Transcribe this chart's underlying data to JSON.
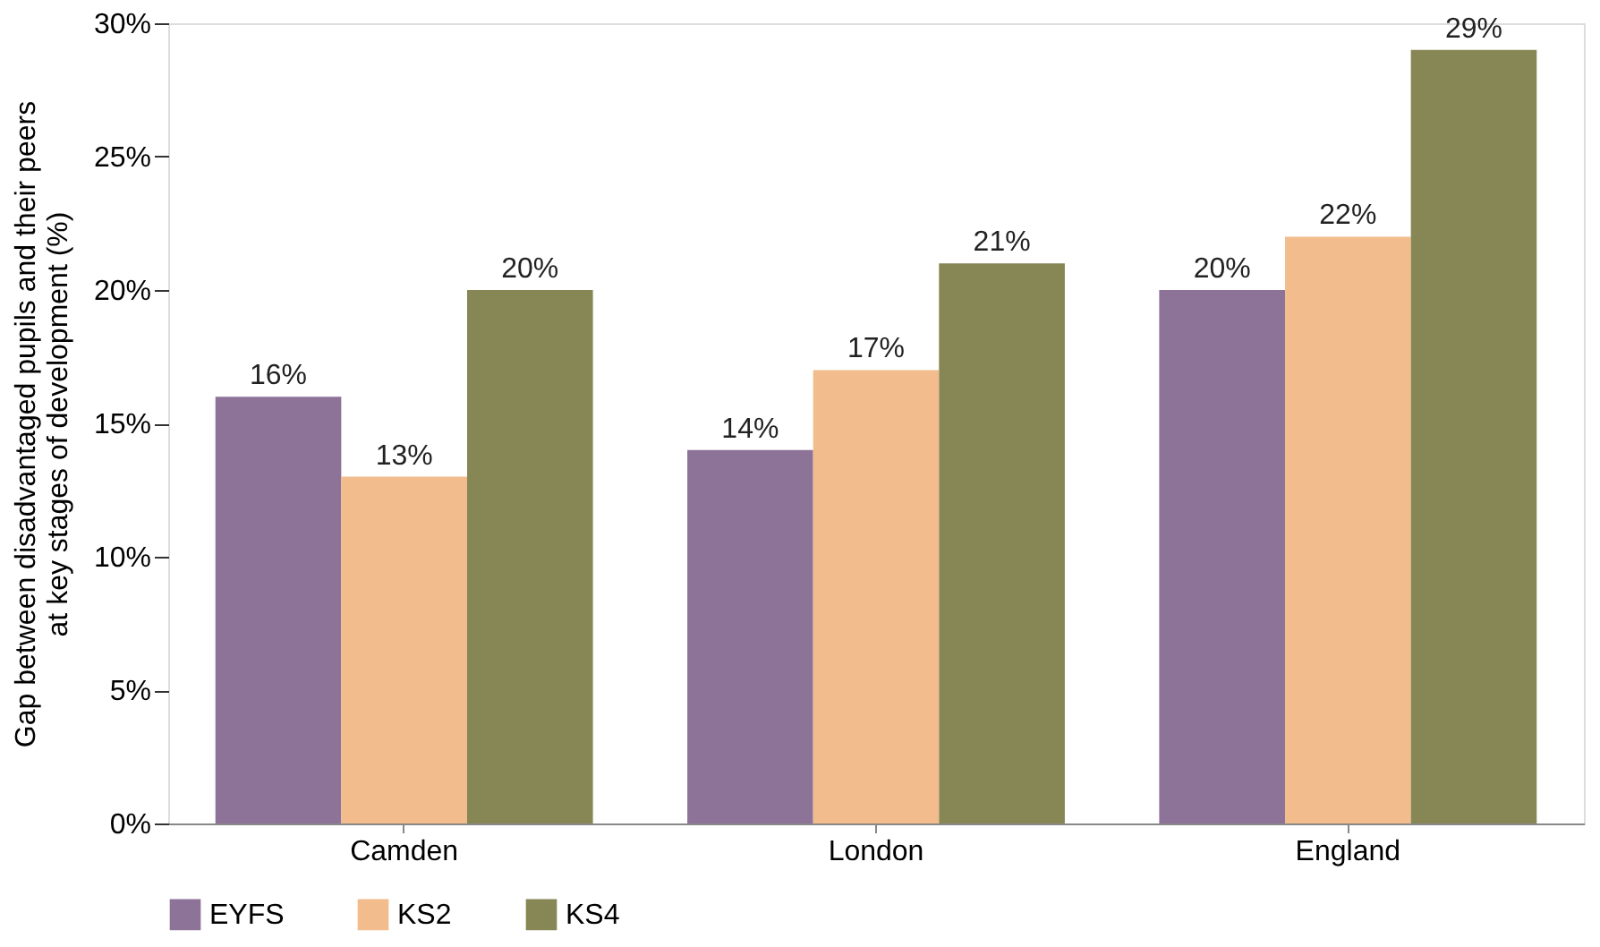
{
  "chart_data": {
    "type": "bar",
    "ylabel": "Gap between disadvantaged pupils and their peers\nat key stages of development (%)",
    "categories": [
      "Camden",
      "London",
      "England"
    ],
    "series": [
      {
        "name": "EYFS",
        "color": "#8e7399",
        "values": [
          16,
          14,
          20
        ],
        "value_labels": [
          "16%",
          "14%",
          "20%"
        ]
      },
      {
        "name": "KS2",
        "color": "#f2bc8d",
        "values": [
          13,
          17,
          22
        ],
        "value_labels": [
          "13%",
          "17%",
          "22%"
        ]
      },
      {
        "name": "KS4",
        "color": "#878755",
        "values": [
          20,
          21,
          29
        ],
        "value_labels": [
          "20%",
          "21%",
          "29%"
        ]
      }
    ],
    "ylim": [
      0,
      30
    ],
    "yticks": [
      {
        "value": 0,
        "label": "0%"
      },
      {
        "value": 5,
        "label": "5%"
      },
      {
        "value": 10,
        "label": "10%"
      },
      {
        "value": 15,
        "label": "15%"
      },
      {
        "value": 20,
        "label": "20%"
      },
      {
        "value": 25,
        "label": "25%"
      },
      {
        "value": 30,
        "label": "30%"
      }
    ],
    "grid": false,
    "legend": "bottom"
  }
}
